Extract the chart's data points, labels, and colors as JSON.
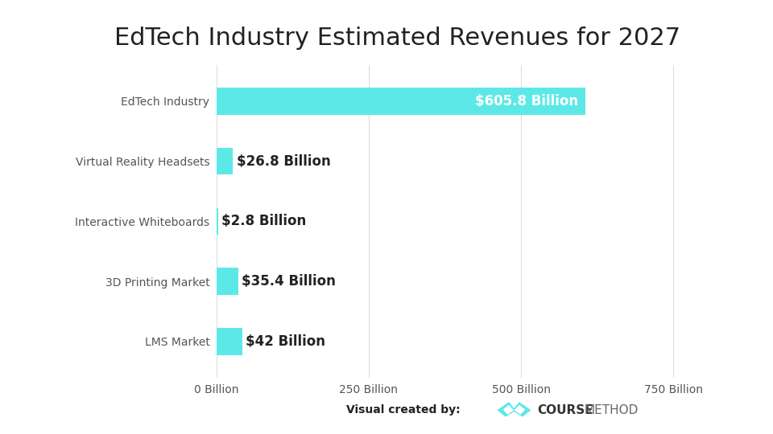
{
  "title": "EdTech Industry Estimated Revenues for 2027",
  "categories": [
    "EdTech Industry",
    "Virtual Reality Headsets",
    "Interactive Whiteboards",
    "3D Printing Market",
    "LMS Market"
  ],
  "values": [
    605.8,
    26.8,
    2.8,
    35.4,
    42.0
  ],
  "labels": [
    "$605.8 Billion",
    "$26.8 Billion",
    "$2.8 Billion",
    "$35.4 Billion",
    "$42 Billion"
  ],
  "bar_color": "#5de8e8",
  "label_color_inside": "#ffffff",
  "label_color_outside": "#222222",
  "label_threshold": 100,
  "x_ticks": [
    0,
    250,
    500,
    750
  ],
  "x_tick_labels": [
    "0 Billion",
    "250 Billion",
    "500 Billion",
    "750 Billion"
  ],
  "xlim": [
    0,
    850
  ],
  "title_fontsize": 22,
  "axis_label_fontsize": 10,
  "bar_label_fontsize": 12,
  "category_fontsize": 10,
  "background_color": "#ffffff",
  "grid_color": "#dddddd",
  "footer_text": "Visual created by:",
  "bar_height": 0.45
}
